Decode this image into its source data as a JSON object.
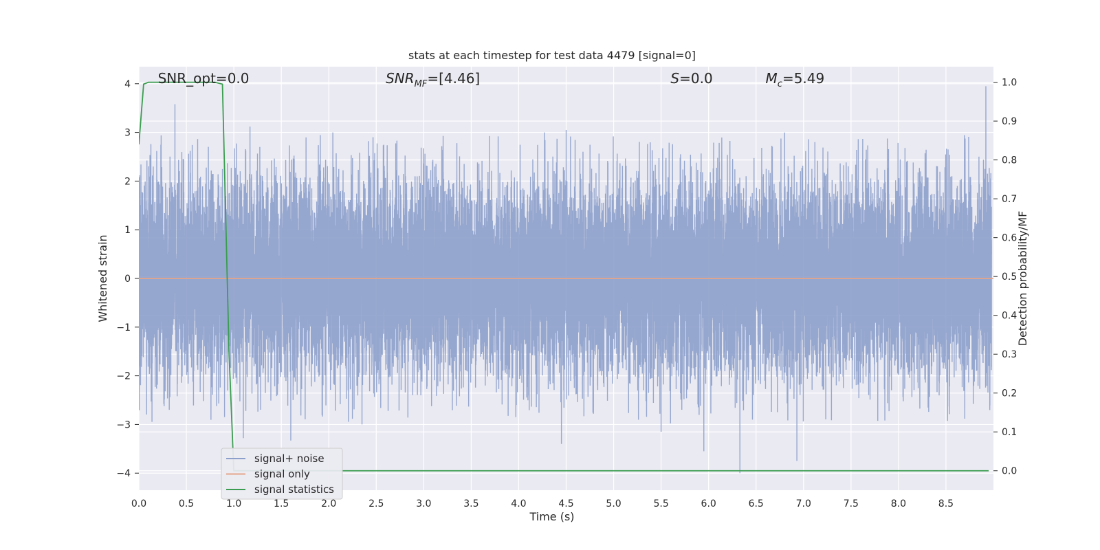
{
  "chart_data": {
    "type": "line",
    "title": "stats at each timestep for test data 4479 [signal=0]",
    "xlabel": "Time (s)",
    "ylabel": "Whitened strain",
    "ylabel_right": "Detection probability/MF",
    "xlim": [
      0.0,
      9.0
    ],
    "ylim": [
      -4.35,
      4.35
    ],
    "ylim_right": [
      -0.05,
      1.04
    ],
    "x_ticks": [
      0.0,
      0.5,
      1.0,
      1.5,
      2.0,
      2.5,
      3.0,
      3.5,
      4.0,
      4.5,
      5.0,
      5.5,
      6.0,
      6.5,
      7.0,
      7.5,
      8.0,
      8.5
    ],
    "x_tick_labels": [
      "0.0",
      "0.5",
      "1.0",
      "1.5",
      "2.0",
      "2.5",
      "3.0",
      "3.5",
      "4.0",
      "4.5",
      "5.0",
      "5.5",
      "6.0",
      "6.5",
      "7.0",
      "7.5",
      "8.0",
      "8.5"
    ],
    "y_ticks": [
      -4,
      -3,
      -2,
      -1,
      0,
      1,
      2,
      3,
      4
    ],
    "y_tick_labels": [
      "−4",
      "−3",
      "−2",
      "−1",
      "0",
      "1",
      "2",
      "3",
      "4"
    ],
    "y_right_ticks": [
      0.0,
      0.1,
      0.2,
      0.3,
      0.4,
      0.5,
      0.6,
      0.7,
      0.8,
      0.9,
      1.0
    ],
    "y_right_tick_labels": [
      "0.0",
      "0.1",
      "0.2",
      "0.3",
      "0.4",
      "0.5",
      "0.6",
      "0.7",
      "0.8",
      "0.9",
      "1.0"
    ],
    "grid": true,
    "legend_position": "lower-left",
    "annotations": [
      {
        "text_main": "SNR_opt=0.0",
        "x": 0.2
      },
      {
        "text_main": "SNR",
        "text_sub": "MF",
        "text_rest": "=[4.46]",
        "italic_main": true,
        "x": 2.6
      },
      {
        "text_main": "S",
        "text_rest": "=0.0",
        "italic_main": true,
        "x": 5.6
      },
      {
        "text_main": "M",
        "text_sub": "c",
        "text_rest": "=5.49",
        "italic_main": true,
        "x": 6.6
      }
    ],
    "series": [
      {
        "name": "signal+ noise",
        "axis": "left",
        "color": "#8da0cb",
        "style": "noise",
        "seed": 4479,
        "std": 1.0,
        "n_points": 16384,
        "spikes": [
          {
            "x": 0.38,
            "y": 3.58
          },
          {
            "x": 0.32,
            "y": -2.7
          },
          {
            "x": 1.17,
            "y": 3.12
          },
          {
            "x": 1.1,
            "y": -3.28
          },
          {
            "x": 1.6,
            "y": -3.33
          },
          {
            "x": 2.35,
            "y": -3.0
          },
          {
            "x": 4.45,
            "y": -3.4
          },
          {
            "x": 4.5,
            "y": 3.05
          },
          {
            "x": 5.5,
            "y": -3.15
          },
          {
            "x": 5.95,
            "y": -3.55
          },
          {
            "x": 6.33,
            "y": -4.0
          },
          {
            "x": 6.93,
            "y": -3.75
          },
          {
            "x": 8.92,
            "y": 3.95
          }
        ]
      },
      {
        "name": "signal only",
        "axis": "left",
        "color": "#e5a58a",
        "style": "line",
        "x": [
          0.0,
          9.0
        ],
        "y": [
          0.0,
          0.0
        ]
      },
      {
        "name": "signal statistics",
        "axis": "right",
        "color": "#3a9d4f",
        "style": "line",
        "x": [
          0.0,
          0.05,
          0.1,
          0.2,
          0.3,
          0.4,
          0.5,
          0.6,
          0.7,
          0.8,
          0.88,
          0.95,
          1.0,
          1.5,
          2.0,
          3.0,
          4.0,
          5.0,
          6.0,
          7.0,
          8.0,
          8.95
        ],
        "y": [
          0.84,
          0.995,
          1.0,
          1.0,
          1.0,
          1.0,
          1.0,
          1.0,
          1.0,
          1.0,
          0.995,
          0.3,
          0.0,
          0.0,
          0.0,
          0.0,
          0.0,
          0.0,
          0.0,
          0.0,
          0.0,
          0.0
        ]
      }
    ]
  }
}
